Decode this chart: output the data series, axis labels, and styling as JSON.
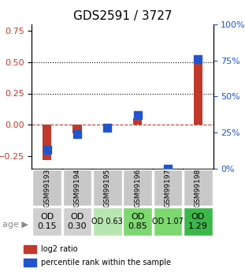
{
  "title": "GDS2591 / 3727",
  "samples": [
    "GSM99193",
    "GSM99194",
    "GSM99195",
    "GSM99196",
    "GSM99197",
    "GSM99198"
  ],
  "log2_ratio": [
    -0.28,
    -0.07,
    -0.03,
    0.055,
    0.0,
    0.54
  ],
  "percentile_rank": [
    0.13,
    0.24,
    0.285,
    0.37,
    0.0,
    0.76
  ],
  "red_color": "#c0392b",
  "blue_color": "#2255cc",
  "ylim_left": [
    -0.35,
    0.8
  ],
  "ylim_right": [
    0,
    100
  ],
  "yticks_left": [
    -0.25,
    0.0,
    0.25,
    0.5,
    0.75
  ],
  "yticks_right": [
    0,
    25,
    50,
    75,
    100
  ],
  "hlines": [
    0.0,
    0.25,
    0.5
  ],
  "hline_styles": [
    "--",
    ":",
    ":"
  ],
  "hline_colors": [
    "#c0392b",
    "black",
    "black"
  ],
  "sample_labels": [
    {
      "text": "OD\n0.15",
      "bg": "#d0d0d0",
      "fontsize": 8
    },
    {
      "text": "OD\n0.30",
      "bg": "#d0d0d0",
      "fontsize": 8
    },
    {
      "text": "OD 0.63",
      "bg": "#b8e6b0",
      "fontsize": 7
    },
    {
      "text": "OD\n0.85",
      "bg": "#7dd870",
      "fontsize": 8
    },
    {
      "text": "OD 1.07",
      "bg": "#7dd870",
      "fontsize": 7
    },
    {
      "text": "OD\n1.29",
      "bg": "#3cb84a",
      "fontsize": 8
    }
  ],
  "age_label": "age",
  "legend_items": [
    {
      "label": "log2 ratio",
      "color": "#c0392b"
    },
    {
      "label": "percentile rank within the sample",
      "color": "#2255cc"
    }
  ],
  "bar_width": 0.3,
  "marker_size": 7
}
